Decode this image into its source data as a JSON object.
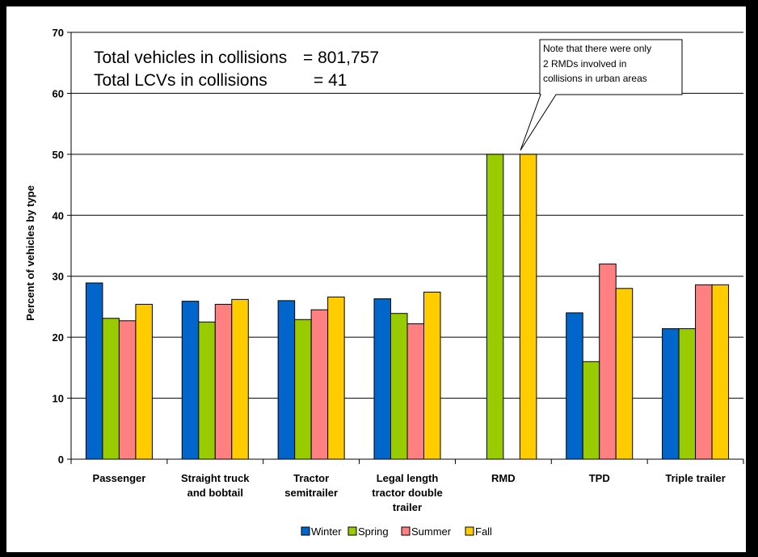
{
  "chart_data": {
    "type": "bar",
    "ylabel": "Percent of vehicles by type",
    "ylim": [
      0,
      70
    ],
    "yticks": [
      0,
      10,
      20,
      30,
      40,
      50,
      60,
      70
    ],
    "grid": true,
    "legend_position": "bottom",
    "categories": [
      [
        "Passenger"
      ],
      [
        "Straight truck",
        "and bobtail"
      ],
      [
        "Tractor",
        "semitrailer"
      ],
      [
        "Legal length",
        "tractor double",
        "trailer"
      ],
      [
        "RMD"
      ],
      [
        "TPD"
      ],
      [
        "Triple trailer"
      ]
    ],
    "series": [
      {
        "name": "Winter",
        "color": "#0066CC",
        "values": [
          28.9,
          25.9,
          26.0,
          26.3,
          0,
          24.0,
          21.4
        ]
      },
      {
        "name": "Spring",
        "color": "#99CC00",
        "values": [
          23.1,
          22.5,
          22.9,
          23.9,
          50.0,
          16.0,
          21.4
        ]
      },
      {
        "name": "Summer",
        "color": "#FF8080",
        "values": [
          22.7,
          25.4,
          24.5,
          22.2,
          0,
          32.0,
          28.6
        ]
      },
      {
        "name": "Fall",
        "color": "#FFCC00",
        "values": [
          25.4,
          26.2,
          26.6,
          27.4,
          50.0,
          28.0,
          28.6
        ]
      }
    ],
    "annotations": {
      "totals": [
        {
          "label": "Total vehicles in collisions",
          "value": "= 801,757"
        },
        {
          "label": "Total LCVs in collisions",
          "value": "= 41"
        }
      ],
      "callout": [
        "Note that there were only",
        "2 RMDs involved in",
        "collisions in urban areas"
      ]
    }
  }
}
